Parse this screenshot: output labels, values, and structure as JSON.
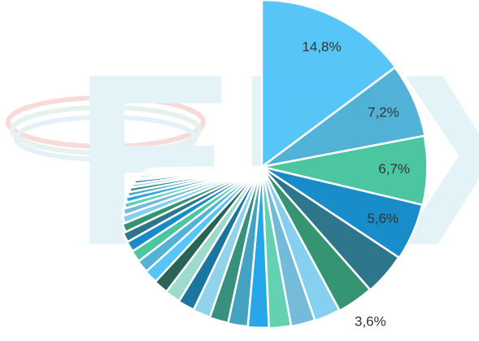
{
  "watermark": "EPX",
  "chart_data": {
    "type": "pie",
    "values": [
      14.8,
      7.2,
      6.7,
      5.6,
      4.2,
      3.6,
      2.6,
      2.4,
      2.2,
      2.1,
      2.0,
      1.9,
      1.8,
      1.7,
      1.6,
      1.5,
      1.4,
      1.3,
      1.2,
      1.1,
      1.0,
      0.9,
      0.8,
      0.7,
      0.6,
      0.6,
      0.5,
      0.5,
      0.4,
      0.4,
      0.3,
      0.3,
      0.3,
      0.2,
      0.2,
      0.2
    ],
    "value_labels": [
      "14,8%",
      "7,2%",
      "6,7%",
      "5,6%",
      null,
      "3,6%",
      null,
      null,
      null,
      null,
      null,
      null,
      null,
      null,
      null,
      null,
      null,
      null,
      null,
      null,
      null,
      null,
      null,
      null,
      null,
      null,
      null,
      null,
      null,
      null,
      null,
      null,
      null,
      null,
      null,
      null
    ],
    "colors": [
      "#4fc3f7",
      "#4aaed6",
      "#43c49c",
      "#0d86c8",
      "#236f86",
      "#2b8f6a",
      "#7fcdf0",
      "#6cb8d6",
      "#5ccfae",
      "#1aa3e8",
      "#3a9fbf",
      "#2d8c78",
      "#8ad2ea",
      "#0f6e9c",
      "#9ad9cc",
      "#1f5c4e"
    ]
  }
}
